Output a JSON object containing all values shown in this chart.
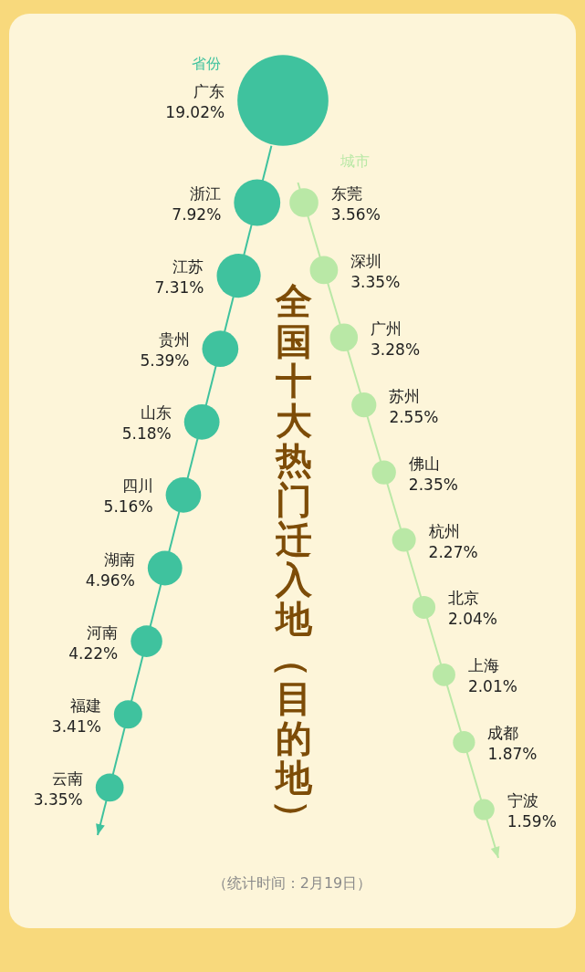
{
  "chart_data": [
    {
      "type": "other",
      "title": "全国十大热门迁入地（目的地）",
      "categories": [
        "广东",
        "浙江",
        "江苏",
        "贵州",
        "山东",
        "四川",
        "湖南",
        "河南",
        "福建",
        "云南"
      ],
      "series": [
        {
          "name": "省份",
          "color": "#3fc29e",
          "values": [
            19.02,
            7.92,
            7.31,
            5.39,
            5.18,
            5.16,
            4.96,
            4.22,
            3.41,
            3.35
          ],
          "value_labels": [
            "19.02%",
            "7.92%",
            "7.31%",
            "5.39%",
            "5.18%",
            "5.16%",
            "4.96%",
            "4.22%",
            "3.41%",
            "3.35%"
          ]
        }
      ]
    },
    {
      "type": "other",
      "annotations": [
        "（统计时间：2月19日）"
      ],
      "categories": [
        "东莞",
        "深圳",
        "广州",
        "苏州",
        "佛山",
        "杭州",
        "北京",
        "上海",
        "成都",
        "宁波"
      ],
      "series": [
        {
          "name": "城市",
          "color": "#b9e8a6",
          "values": [
            3.56,
            3.35,
            3.28,
            2.55,
            2.35,
            2.27,
            2.04,
            2.01,
            1.87,
            1.59
          ],
          "value_labels": [
            "3.56%",
            "3.35%",
            "3.28%",
            "2.55%",
            "2.35%",
            "2.27%",
            "2.04%",
            "2.01%",
            "1.87%",
            "1.59%"
          ]
        }
      ]
    }
  ]
}
